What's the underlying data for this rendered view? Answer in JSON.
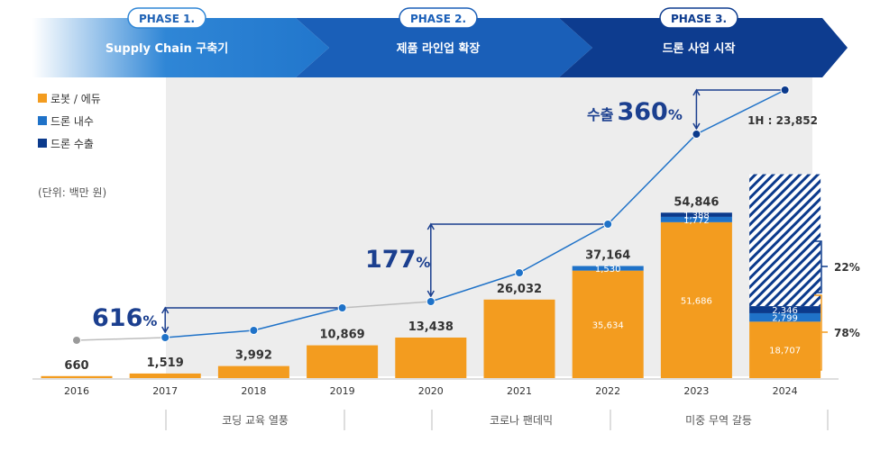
{
  "phases": [
    {
      "tag": "PHASE 1.",
      "label": "Supply Chain 구축기"
    },
    {
      "tag": "PHASE 2.",
      "label": "제품 라인업 확장"
    },
    {
      "tag": "PHASE 3.",
      "label": "드론 사업 시작"
    }
  ],
  "legend": [
    {
      "label": "로봇 / 에듀",
      "color": "#F39C1F"
    },
    {
      "label": "드론 내수",
      "color": "#1F72C8"
    },
    {
      "label": "드론 수출",
      "color": "#0B3A8C"
    }
  ],
  "unit_note": "(단위: 백만 원)",
  "events": [
    "코딩 교육 열풍",
    "코로나 팬데믹",
    "미중 무역 갈등"
  ],
  "growth": [
    {
      "value": "616",
      "suffix": "%"
    },
    {
      "value": "177",
      "suffix": "%"
    },
    {
      "prefix": "수출",
      "value": "360",
      "suffix": "%"
    }
  ],
  "h1_label": "1H : 23,852",
  "share_labels": [
    "22%",
    "78%"
  ],
  "colors": {
    "robot": "#F39C1F",
    "domestic": "#1F72C8",
    "export": "#0B3A8C",
    "line": "#1F72C8",
    "gray": "#9A9A9A",
    "annotation": "#1B3F8F"
  },
  "chart_data": {
    "type": "bar",
    "categories": [
      "2016",
      "2017",
      "2018",
      "2019",
      "2020",
      "2021",
      "2022",
      "2023",
      "2024"
    ],
    "series": [
      {
        "name": "로봇 / 에듀",
        "values": [
          660,
          1519,
          3992,
          10869,
          13438,
          26032,
          35634,
          51686,
          18707
        ]
      },
      {
        "name": "드론 내수",
        "values": [
          0,
          0,
          0,
          0,
          0,
          0,
          1530,
          1772,
          2799
        ]
      },
      {
        "name": "드론 수출",
        "values": [
          0,
          0,
          0,
          0,
          0,
          0,
          0,
          1388,
          2346
        ]
      }
    ],
    "total_labels": [
      "660",
      "1,519",
      "3,992",
      "10,869",
      "13,438",
      "26,032",
      "37,164",
      "54,846",
      ""
    ],
    "segment_labels": {
      "robot": [
        "",
        "",
        "",
        "",
        "",
        "",
        "35,634",
        "51,686",
        "18,707"
      ],
      "domestic": [
        "",
        "",
        "",
        "",
        "",
        "",
        "1,530",
        "1,772",
        "2,799"
      ],
      "export": [
        "",
        "",
        "",
        "",
        "",
        "",
        "",
        "1,388",
        "2,346"
      ]
    },
    "trend": {
      "type": "line",
      "values": [
        660,
        1519,
        3992,
        10869,
        13438,
        26032,
        37164,
        54846,
        70000
      ]
    }
  }
}
